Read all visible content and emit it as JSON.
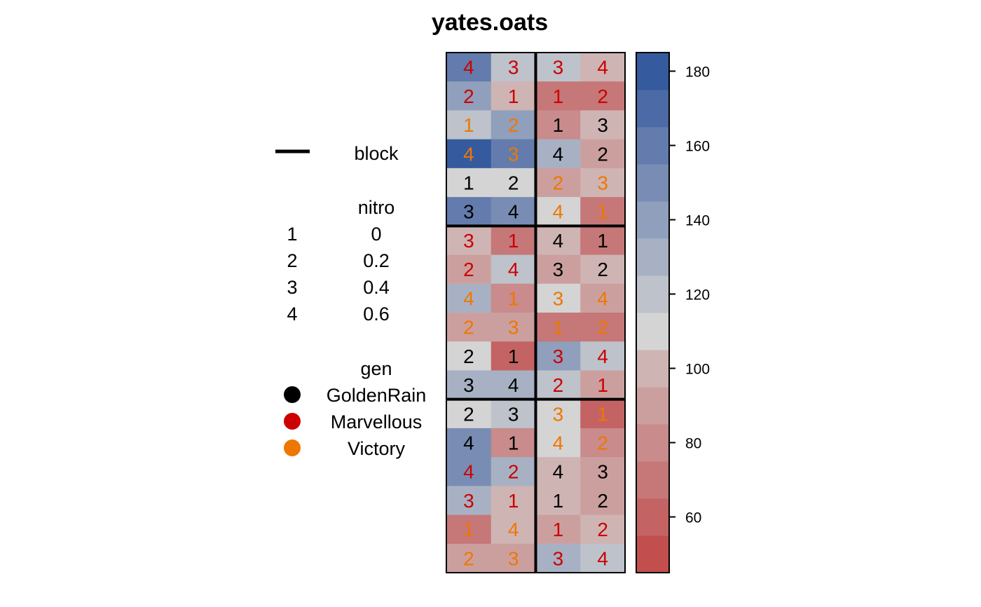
{
  "chart_data": {
    "type": "heatmap",
    "title": "yates.oats",
    "ncols": 4,
    "nrows": 18,
    "block_lines": {
      "vertical_after_col": [
        2
      ],
      "horizontal_after_row": [
        6,
        12
      ]
    },
    "gen_colors": {
      "GoldenRain": "#000000",
      "Marvellous": "#cc0000",
      "Victory": "#ee7700"
    },
    "cells": [
      [
        {
          "v": 159,
          "n": "4",
          "g": "Marvellous"
        },
        {
          "v": 118,
          "n": "3",
          "g": "Marvellous"
        },
        {
          "v": 118,
          "n": "3",
          "g": "Marvellous"
        },
        {
          "v": 104,
          "n": "4",
          "g": "Marvellous"
        }
      ],
      [
        {
          "v": 136,
          "n": "2",
          "g": "Marvellous"
        },
        {
          "v": 101,
          "n": "1",
          "g": "Marvellous"
        },
        {
          "v": 68,
          "n": "1",
          "g": "Marvellous"
        },
        {
          "v": 72,
          "n": "2",
          "g": "Marvellous"
        }
      ],
      [
        {
          "v": 116,
          "n": "1",
          "g": "Victory"
        },
        {
          "v": 141,
          "n": "2",
          "g": "Victory"
        },
        {
          "v": 84,
          "n": "1",
          "g": "GoldenRain"
        },
        {
          "v": 96,
          "n": "3",
          "g": "GoldenRain"
        }
      ],
      [
        {
          "v": 178,
          "n": "4",
          "g": "Victory"
        },
        {
          "v": 162,
          "n": "3",
          "g": "Victory"
        },
        {
          "v": 125,
          "n": "4",
          "g": "GoldenRain"
        },
        {
          "v": 86,
          "n": "2",
          "g": "GoldenRain"
        }
      ],
      [
        {
          "v": 112,
          "n": "1",
          "g": "GoldenRain"
        },
        {
          "v": 105,
          "n": "2",
          "g": "GoldenRain"
        },
        {
          "v": 90,
          "n": "2",
          "g": "Victory"
        },
        {
          "v": 98,
          "n": "3",
          "g": "Victory"
        }
      ],
      [
        {
          "v": 160,
          "n": "3",
          "g": "GoldenRain"
        },
        {
          "v": 148,
          "n": "4",
          "g": "GoldenRain"
        },
        {
          "v": 112,
          "n": "4",
          "g": "Victory"
        },
        {
          "v": 66,
          "n": "1",
          "g": "Victory"
        }
      ],
      [
        {
          "v": 100,
          "n": "3",
          "g": "Marvellous"
        },
        {
          "v": 72,
          "n": "1",
          "g": "Marvellous"
        },
        {
          "v": 96,
          "n": "4",
          "g": "GoldenRain"
        },
        {
          "v": 68,
          "n": "1",
          "g": "GoldenRain"
        }
      ],
      [
        {
          "v": 91,
          "n": "2",
          "g": "Marvellous"
        },
        {
          "v": 117,
          "n": "4",
          "g": "Marvellous"
        },
        {
          "v": 94,
          "n": "3",
          "g": "GoldenRain"
        },
        {
          "v": 104,
          "n": "2",
          "g": "GoldenRain"
        }
      ],
      [
        {
          "v": 128,
          "n": "4",
          "g": "Victory"
        },
        {
          "v": 78,
          "n": "1",
          "g": "Victory"
        },
        {
          "v": 112,
          "n": "3",
          "g": "Victory"
        },
        {
          "v": 88,
          "n": "4",
          "g": "Victory"
        }
      ],
      [
        {
          "v": 90,
          "n": "2",
          "g": "Victory"
        },
        {
          "v": 86,
          "n": "3",
          "g": "Victory"
        },
        {
          "v": 70,
          "n": "1",
          "g": "Victory"
        },
        {
          "v": 65,
          "n": "2",
          "g": "Victory"
        }
      ],
      [
        {
          "v": 105,
          "n": "2",
          "g": "GoldenRain"
        },
        {
          "v": 64,
          "n": "1",
          "g": "GoldenRain"
        },
        {
          "v": 138,
          "n": "3",
          "g": "Marvellous"
        },
        {
          "v": 120,
          "n": "4",
          "g": "Marvellous"
        }
      ],
      [
        {
          "v": 133,
          "n": "3",
          "g": "GoldenRain"
        },
        {
          "v": 130,
          "n": "4",
          "g": "GoldenRain"
        },
        {
          "v": 122,
          "n": "2",
          "g": "Marvellous"
        },
        {
          "v": 91,
          "n": "1",
          "g": "Marvellous"
        }
      ],
      [
        {
          "v": 114,
          "n": "2",
          "g": "GoldenRain"
        },
        {
          "v": 120,
          "n": "3",
          "g": "GoldenRain"
        },
        {
          "v": 111,
          "n": "3",
          "g": "Victory"
        },
        {
          "v": 58,
          "n": "1",
          "g": "Victory"
        }
      ],
      [
        {
          "v": 150,
          "n": "4",
          "g": "GoldenRain"
        },
        {
          "v": 78,
          "n": "1",
          "g": "GoldenRain"
        },
        {
          "v": 112,
          "n": "4",
          "g": "Victory"
        },
        {
          "v": 80,
          "n": "2",
          "g": "Victory"
        }
      ],
      [
        {
          "v": 148,
          "n": "4",
          "g": "Marvellous"
        },
        {
          "v": 130,
          "n": "2",
          "g": "Marvellous"
        },
        {
          "v": 104,
          "n": "4",
          "g": "GoldenRain"
        },
        {
          "v": 89,
          "n": "3",
          "g": "GoldenRain"
        }
      ],
      [
        {
          "v": 126,
          "n": "3",
          "g": "Marvellous"
        },
        {
          "v": 95,
          "n": "1",
          "g": "Marvellous"
        },
        {
          "v": 96,
          "n": "1",
          "g": "GoldenRain"
        },
        {
          "v": 94,
          "n": "2",
          "g": "GoldenRain"
        }
      ],
      [
        {
          "v": 70,
          "n": "1",
          "g": "Victory"
        },
        {
          "v": 103,
          "n": "4",
          "g": "Victory"
        },
        {
          "v": 92,
          "n": "1",
          "g": "Marvellous"
        },
        {
          "v": 102,
          "n": "2",
          "g": "Marvellous"
        }
      ],
      [
        {
          "v": 88,
          "n": "2",
          "g": "Victory"
        },
        {
          "v": 91,
          "n": "3",
          "g": "Victory"
        },
        {
          "v": 126,
          "n": "3",
          "g": "Marvellous"
        },
        {
          "v": 122,
          "n": "4",
          "g": "Marvellous"
        }
      ]
    ],
    "colorbar": {
      "min": 45,
      "max": 185,
      "ticks": [
        60,
        80,
        100,
        120,
        140,
        160,
        180
      ],
      "colors": [
        "#c24e4e",
        "#c46363",
        "#c67777",
        "#c98b8b",
        "#cc9f9f",
        "#cfb4b4",
        "#d4d4d4",
        "#bec2ca",
        "#a7b1c3",
        "#909fbc",
        "#798db4",
        "#637cad",
        "#4c6aa5",
        "#355a9e"
      ]
    },
    "legend": {
      "block": {
        "title": "block",
        "color": "#000000"
      },
      "nitro": {
        "title": "nitro",
        "entries": [
          {
            "code": "1",
            "value": "0"
          },
          {
            "code": "2",
            "value": "0.2"
          },
          {
            "code": "3",
            "value": "0.4"
          },
          {
            "code": "4",
            "value": "0.6"
          }
        ]
      },
      "gen": {
        "title": "gen",
        "entries": [
          {
            "name": "GoldenRain",
            "color": "#000000"
          },
          {
            "name": "Marvellous",
            "color": "#cc0000"
          },
          {
            "name": "Victory",
            "color": "#ee7700"
          }
        ]
      }
    }
  }
}
